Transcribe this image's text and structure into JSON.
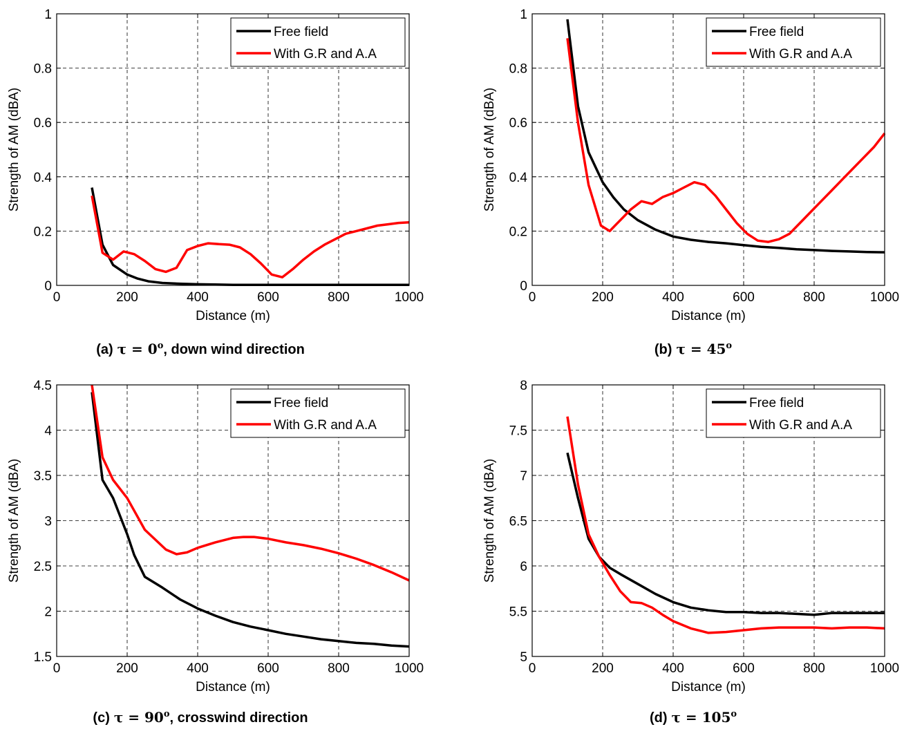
{
  "chart_data": [
    {
      "type": "line",
      "caption": {
        "prefix": "(a)",
        "tau": "τ = 0",
        "deg": "o",
        "suffix": ", down wind direction"
      },
      "xlabel": "Distance (m)",
      "ylabel": "Strength of AM (dBA)",
      "xlim": [
        0,
        1000
      ],
      "ylim": [
        0,
        1
      ],
      "xticks": [
        0,
        200,
        400,
        600,
        800,
        1000
      ],
      "yticks": [
        0,
        0.2,
        0.4,
        0.6,
        0.8,
        1
      ],
      "ytick_labels": [
        "0",
        "0.2",
        "0.4",
        "0.6",
        "0.8",
        "1"
      ],
      "grid": true,
      "legend_position": "top-right",
      "series": [
        {
          "name": "Free field",
          "color": "#000000",
          "x": [
            100,
            130,
            160,
            200,
            230,
            260,
            300,
            350,
            400,
            450,
            500,
            600,
            700,
            800,
            900,
            1000
          ],
          "y": [
            0.36,
            0.15,
            0.075,
            0.04,
            0.025,
            0.015,
            0.009,
            0.006,
            0.004,
            0.003,
            0.002,
            0.002,
            0.002,
            0.002,
            0.002,
            0.002
          ]
        },
        {
          "name": "With G.R and A.A",
          "color": "#ff0000",
          "x": [
            100,
            130,
            160,
            190,
            220,
            250,
            280,
            310,
            340,
            370,
            400,
            430,
            460,
            490,
            520,
            550,
            580,
            610,
            640,
            670,
            700,
            730,
            760,
            790,
            820,
            850,
            880,
            910,
            940,
            970,
            1000
          ],
          "y": [
            0.33,
            0.12,
            0.095,
            0.125,
            0.115,
            0.09,
            0.06,
            0.05,
            0.065,
            0.13,
            0.145,
            0.155,
            0.152,
            0.15,
            0.14,
            0.115,
            0.08,
            0.04,
            0.03,
            0.06,
            0.095,
            0.125,
            0.15,
            0.17,
            0.19,
            0.2,
            0.21,
            0.22,
            0.225,
            0.23,
            0.232
          ]
        }
      ]
    },
    {
      "type": "line",
      "caption": {
        "prefix": "(b)",
        "tau": "τ = 45",
        "deg": "o",
        "suffix": ""
      },
      "xlabel": "Distance (m)",
      "ylabel": "Strength of AM (dBA)",
      "xlim": [
        0,
        1000
      ],
      "ylim": [
        0,
        1
      ],
      "xticks": [
        0,
        200,
        400,
        600,
        800,
        1000
      ],
      "yticks": [
        0,
        0.2,
        0.4,
        0.6,
        0.8,
        1
      ],
      "ytick_labels": [
        "0",
        "0.2",
        "0.4",
        "0.6",
        "0.8",
        "1"
      ],
      "grid": true,
      "legend_position": "top-right",
      "series": [
        {
          "name": "Free field",
          "color": "#000000",
          "x": [
            100,
            130,
            160,
            200,
            230,
            260,
            300,
            350,
            400,
            450,
            500,
            550,
            600,
            650,
            700,
            750,
            800,
            850,
            900,
            950,
            1000
          ],
          "y": [
            0.98,
            0.66,
            0.49,
            0.38,
            0.325,
            0.28,
            0.24,
            0.205,
            0.18,
            0.168,
            0.16,
            0.155,
            0.148,
            0.142,
            0.138,
            0.133,
            0.13,
            0.127,
            0.125,
            0.123,
            0.122
          ]
        },
        {
          "name": "With G.R and A.A",
          "color": "#ff0000",
          "x": [
            100,
            130,
            160,
            195,
            220,
            250,
            280,
            310,
            340,
            370,
            400,
            430,
            460,
            490,
            520,
            550,
            580,
            610,
            640,
            670,
            700,
            730,
            760,
            790,
            820,
            850,
            880,
            910,
            940,
            970,
            1000
          ],
          "y": [
            0.91,
            0.6,
            0.37,
            0.22,
            0.2,
            0.24,
            0.28,
            0.31,
            0.3,
            0.325,
            0.34,
            0.36,
            0.38,
            0.37,
            0.33,
            0.28,
            0.23,
            0.19,
            0.165,
            0.16,
            0.17,
            0.19,
            0.23,
            0.27,
            0.31,
            0.35,
            0.39,
            0.43,
            0.47,
            0.51,
            0.56
          ]
        }
      ]
    },
    {
      "type": "line",
      "caption": {
        "prefix": "(c)",
        "tau": "τ = 90",
        "deg": "o",
        "suffix": ", crosswind direction"
      },
      "xlabel": "Distance (m)",
      "ylabel": "Strength of AM (dBA)",
      "xlim": [
        0,
        1000
      ],
      "ylim": [
        1.5,
        4.5
      ],
      "xticks": [
        0,
        200,
        400,
        600,
        800,
        1000
      ],
      "yticks": [
        1.5,
        2,
        2.5,
        3,
        3.5,
        4,
        4.5
      ],
      "ytick_labels": [
        "1.5",
        "2",
        "2.5",
        "3",
        "3.5",
        "4",
        "4.5"
      ],
      "grid": true,
      "legend_position": "top-right",
      "series": [
        {
          "name": "Free field",
          "color": "#000000",
          "x": [
            100,
            130,
            160,
            200,
            220,
            250,
            300,
            350,
            400,
            450,
            500,
            550,
            600,
            650,
            700,
            750,
            800,
            850,
            900,
            950,
            1000
          ],
          "y": [
            4.42,
            3.45,
            3.25,
            2.85,
            2.62,
            2.38,
            2.26,
            2.13,
            2.03,
            1.95,
            1.88,
            1.83,
            1.79,
            1.75,
            1.72,
            1.69,
            1.67,
            1.65,
            1.64,
            1.62,
            1.61
          ]
        },
        {
          "name": "With G.R and A.A",
          "color": "#ff0000",
          "x": [
            100,
            130,
            160,
            200,
            250,
            310,
            340,
            370,
            400,
            450,
            500,
            530,
            560,
            600,
            650,
            700,
            750,
            800,
            850,
            900,
            950,
            1000
          ],
          "y": [
            4.5,
            3.7,
            3.45,
            3.25,
            2.9,
            2.68,
            2.63,
            2.65,
            2.7,
            2.76,
            2.81,
            2.82,
            2.82,
            2.8,
            2.76,
            2.73,
            2.69,
            2.64,
            2.58,
            2.51,
            2.43,
            2.34
          ]
        }
      ]
    },
    {
      "type": "line",
      "caption": {
        "prefix": "(d)",
        "tau": "τ = 105",
        "deg": "o",
        "suffix": ""
      },
      "xlabel": "Distance (m)",
      "ylabel": "Strength of AM (dBA)",
      "xlim": [
        0,
        1000
      ],
      "ylim": [
        5,
        8
      ],
      "xticks": [
        0,
        200,
        400,
        600,
        800,
        1000
      ],
      "yticks": [
        5,
        5.5,
        6,
        6.5,
        7,
        7.5,
        8
      ],
      "ytick_labels": [
        "5",
        "5.5",
        "6",
        "6.5",
        "7",
        "7.5",
        "8"
      ],
      "grid": true,
      "legend_position": "top-right",
      "series": [
        {
          "name": "Free field",
          "color": "#000000",
          "x": [
            100,
            130,
            160,
            190,
            220,
            250,
            300,
            350,
            400,
            450,
            500,
            550,
            600,
            650,
            700,
            750,
            800,
            850,
            900,
            950,
            1000
          ],
          "y": [
            7.25,
            6.75,
            6.3,
            6.1,
            5.98,
            5.91,
            5.8,
            5.69,
            5.6,
            5.54,
            5.51,
            5.49,
            5.49,
            5.48,
            5.48,
            5.47,
            5.46,
            5.48,
            5.48,
            5.48,
            5.48
          ]
        },
        {
          "name": "With G.R and A.A",
          "color": "#ff0000",
          "x": [
            100,
            130,
            160,
            190,
            220,
            250,
            280,
            310,
            340,
            370,
            400,
            450,
            500,
            550,
            600,
            650,
            700,
            750,
            800,
            850,
            900,
            950,
            1000
          ],
          "y": [
            7.65,
            6.9,
            6.35,
            6.1,
            5.9,
            5.72,
            5.6,
            5.59,
            5.54,
            5.46,
            5.39,
            5.31,
            5.26,
            5.27,
            5.29,
            5.31,
            5.32,
            5.32,
            5.32,
            5.31,
            5.32,
            5.32,
            5.31
          ]
        }
      ]
    }
  ]
}
